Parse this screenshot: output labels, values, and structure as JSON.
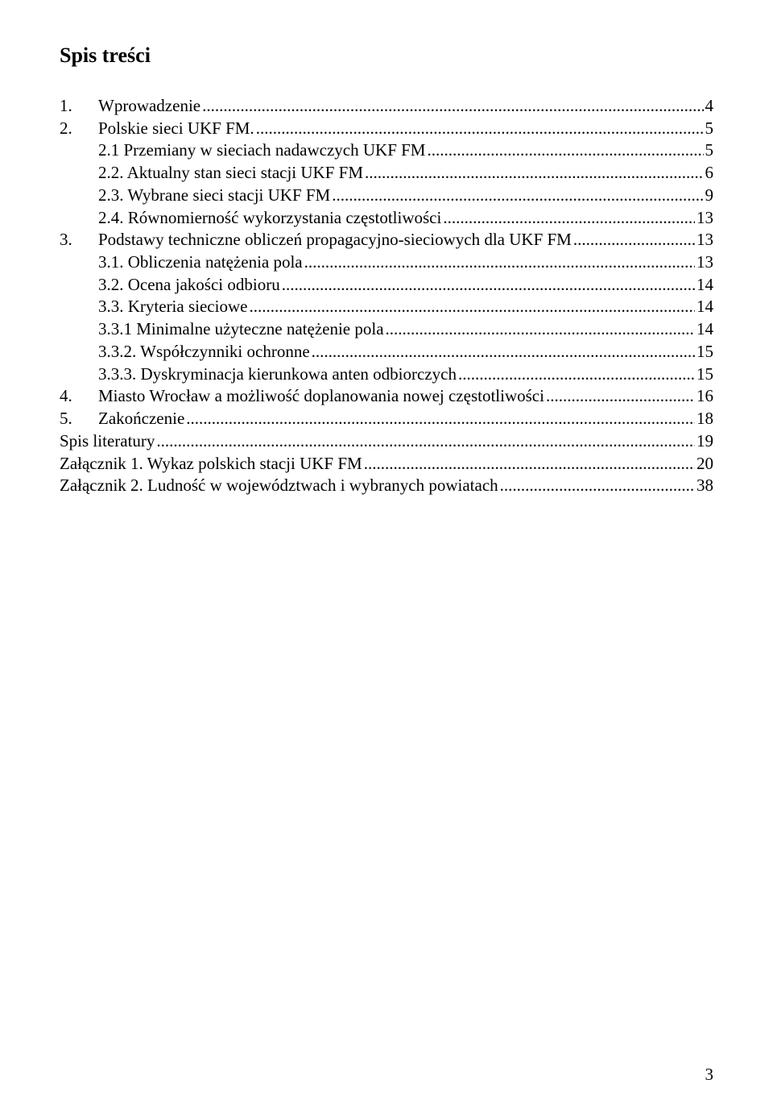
{
  "heading": "Spis treści",
  "page_number": "3",
  "toc": [
    {
      "indent": 0,
      "num": "1.",
      "gap": "   ",
      "title": "Wprowadzenie",
      "page": "4"
    },
    {
      "indent": 0,
      "num": "2.",
      "gap": "   ",
      "title": "Polskie sieci UKF FM.",
      "page": "5"
    },
    {
      "indent": 1,
      "num": "2.1",
      "gap": "   ",
      "title": "Przemiany w sieciach nadawczych UKF FM",
      "page": "5"
    },
    {
      "indent": 1,
      "num": "2.2.",
      "gap": "  ",
      "title": "Aktualny stan sieci stacji UKF FM",
      "page": "6"
    },
    {
      "indent": 1,
      "num": "2.3.",
      "gap": "  ",
      "title": "Wybrane sieci stacji UKF FM",
      "page": "9"
    },
    {
      "indent": 1,
      "num": "2.4.",
      "gap": "  ",
      "title": "Równomierność wykorzystania częstotliwości",
      "page": "13"
    },
    {
      "indent": 0,
      "num": "3.",
      "gap": "   ",
      "title": "Podstawy techniczne obliczeń propagacyjno-sieciowych dla UKF FM",
      "page": "13"
    },
    {
      "indent": 1,
      "num": "3.1.",
      "gap": "  ",
      "title": "Obliczenia natężenia pola",
      "page": "13"
    },
    {
      "indent": 1,
      "num": "3.2.",
      "gap": "  ",
      "title": "Ocena jakości odbioru",
      "page": "14"
    },
    {
      "indent": 1,
      "num": "3.3.",
      "gap": "  ",
      "title": "Kryteria sieciowe",
      "page": "14"
    },
    {
      "indent": 1,
      "num": "3.3.1",
      "gap": " ",
      "title": "Minimalne użyteczne natężenie pola",
      "page": "14"
    },
    {
      "indent": 1,
      "num": "3.3.2.",
      "gap": " ",
      "title": "Współczynniki ochronne",
      "page": "15"
    },
    {
      "indent": 1,
      "num": "3.3.3.",
      "gap": " ",
      "title": "Dyskryminacja kierunkowa anten odbiorczych",
      "page": "15"
    },
    {
      "indent": 0,
      "num": "4.",
      "gap": "   ",
      "title": "Miasto Wrocław a możliwość doplanowania nowej częstotliwości",
      "page": "16"
    },
    {
      "indent": 0,
      "num": "5.",
      "gap": "   ",
      "title": "Zakończenie",
      "page": "18"
    },
    {
      "indent": -1,
      "num": "",
      "gap": "",
      "title": "Spis literatury",
      "page": "19"
    },
    {
      "indent": -1,
      "num": "",
      "gap": "",
      "title": "Załącznik 1. Wykaz polskich stacji UKF FM",
      "page": "20"
    },
    {
      "indent": -1,
      "num": "",
      "gap": "",
      "title": "Załącznik 2. Ludność w województwach i wybranych powiatach",
      "page": "38"
    }
  ]
}
